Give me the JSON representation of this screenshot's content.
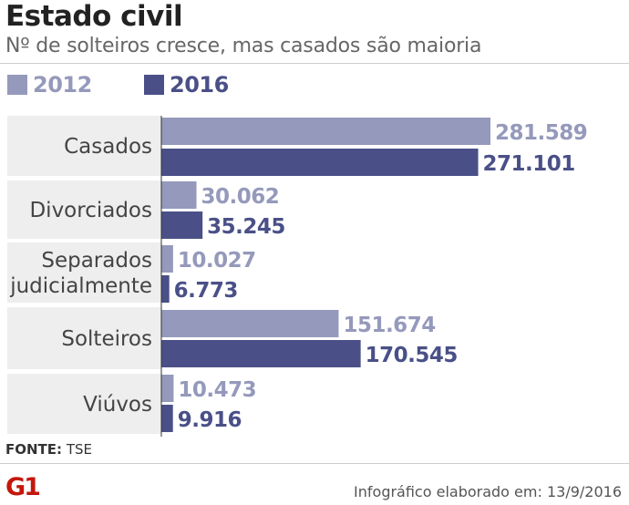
{
  "header": {
    "title": "Estado civil",
    "subtitle": "Nº de solteiros cresce, mas casados são maioria"
  },
  "colors": {
    "series_2012": "#9599bb",
    "series_2016": "#4a5087",
    "row_band": "#eeeeee"
  },
  "chart_data": {
    "type": "bar",
    "orientation": "horizontal",
    "title": "Estado civil",
    "subtitle": "Nº de solteiros cresce, mas casados são maioria",
    "categories": [
      [
        "Casados"
      ],
      [
        "Divorciados"
      ],
      [
        "Separados",
        "judicialmente"
      ],
      [
        "Solteiros"
      ],
      [
        "Viúvos"
      ]
    ],
    "series": [
      {
        "name": "2012",
        "values": [
          281589,
          30062,
          10027,
          151674,
          10473
        ],
        "labels": [
          "281.589",
          "30.062",
          "10.027",
          "151.674",
          "10.473"
        ],
        "color": "#9599bb"
      },
      {
        "name": "2016",
        "values": [
          271101,
          35245,
          6773,
          170545,
          9916
        ],
        "labels": [
          "271.101",
          "35.245",
          "6.773",
          "170.545",
          "9.916"
        ],
        "color": "#4a5087"
      }
    ],
    "legend_position": "top-left",
    "grid": false,
    "xlim": [
      0,
      281589
    ]
  },
  "footer": {
    "source_label": "FONTE:",
    "source_value": "TSE",
    "logo": "G1",
    "credit": "Infográfico elaborado em: 13/9/2016"
  }
}
